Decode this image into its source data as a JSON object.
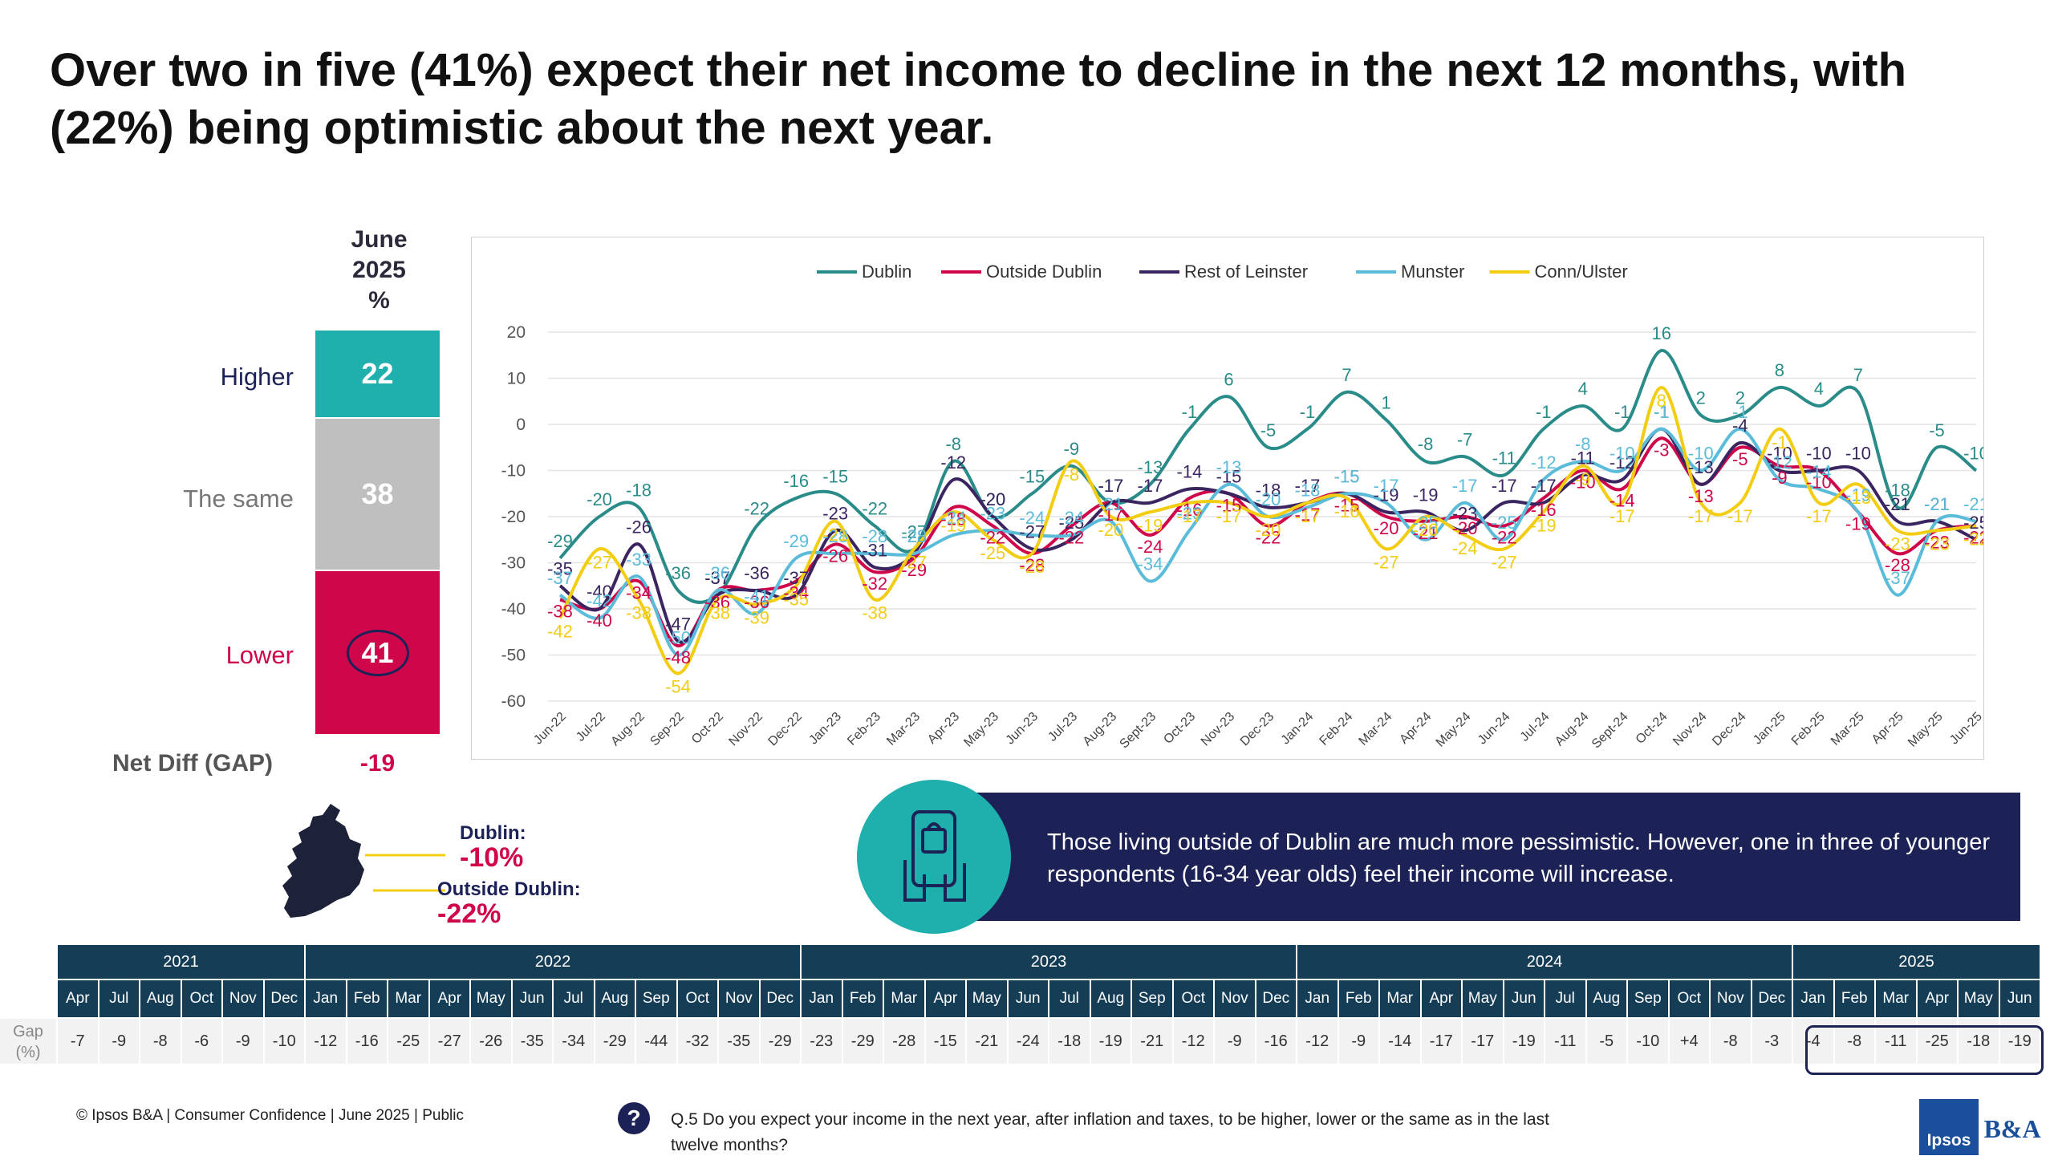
{
  "title": "Over two in five (41%) expect their net income to decline in the next 12 months, with (22%) being optimistic about the next year.",
  "stack": {
    "header_line1": "June",
    "header_line2": "2025",
    "header_line3": "%",
    "higher_label": "Higher",
    "higher_value": "22",
    "same_label": "The same",
    "same_value": "38",
    "lower_label": "Lower",
    "lower_value": "41",
    "gap_label": "Net Diff (GAP)",
    "gap_value": "-19",
    "colors": {
      "higher": "#1fafad",
      "same": "#bfbfbf",
      "lower": "#d0064b"
    }
  },
  "map_notes": {
    "dublin_label": "Dublin:",
    "dublin_value": "-10%",
    "outside_label": "Outside Dublin:",
    "outside_value": "-22%"
  },
  "callout": {
    "text": "Those living outside of Dublin are much more pessimistic. However, one in three of younger respondents (16-34 year olds) feel their income will increase.",
    "icon": "phone-shopping-bag-icon"
  },
  "chart_data": {
    "type": "line",
    "x": [
      "Jun-22",
      "Jul-22",
      "Aug-22",
      "Sep-22",
      "Oct-22",
      "Nov-22",
      "Dec-22",
      "Jan-23",
      "Feb-23",
      "Mar-23",
      "Apr-23",
      "May-23",
      "Jun-23",
      "Jul-23",
      "Aug-23",
      "Sept-23",
      "Oct-23",
      "Nov-23",
      "Dec-23",
      "Jan-24",
      "Feb-24",
      "Mar-24",
      "Apr-24",
      "May-24",
      "Jun-24",
      "Jul-24",
      "Aug-24",
      "Sept-24",
      "Oct-24",
      "Nov-24",
      "Dec-24",
      "Jan-25",
      "Feb-25",
      "Mar-25",
      "Apr-25",
      "May-25",
      "Jun-25"
    ],
    "ylim": [
      -60,
      20
    ],
    "yticks": [
      20,
      10,
      0,
      -10,
      -20,
      -30,
      -40,
      -50,
      -60
    ],
    "grid": true,
    "legend": "top",
    "series": [
      {
        "name": "Dublin",
        "color": "#2a8c89",
        "values": [
          -29,
          -20,
          -18,
          -36,
          -37,
          -22,
          -16,
          -15,
          -22,
          -27,
          -8,
          -20,
          -15,
          -9,
          -17,
          -13,
          -1,
          6,
          -5,
          -1,
          7,
          1,
          -8,
          -7,
          -11,
          -1,
          4,
          -1,
          16,
          2,
          2,
          8,
          4,
          7,
          -18,
          -5,
          -10
        ]
      },
      {
        "name": "Outside Dublin",
        "color": "#d0064b",
        "values": [
          -38,
          -40,
          -34,
          -48,
          -36,
          -36,
          -34,
          -26,
          -32,
          -29,
          -18,
          -22,
          -28,
          -22,
          -17,
          -24,
          -16,
          -15,
          -22,
          -17,
          -15,
          -20,
          -21,
          -20,
          -22,
          -16,
          -10,
          -14,
          -3,
          -13,
          -5,
          -9,
          -10,
          -19,
          -28,
          -23,
          -22
        ]
      },
      {
        "name": "Rest of Leinster",
        "color": "#3b2560",
        "values": [
          -35,
          -40,
          -26,
          -47,
          -37,
          -36,
          -37,
          -23,
          -31,
          -28,
          -12,
          -20,
          -27,
          -25,
          -17,
          -17,
          -14,
          -15,
          -18,
          -17,
          -15,
          -19,
          -19,
          -23,
          -17,
          -17,
          -11,
          -12,
          -1,
          -13,
          -4,
          -10,
          -10,
          -10,
          -21,
          -21,
          -25
        ]
      },
      {
        "name": "Munster",
        "color": "#5bbcd9",
        "values": [
          -37,
          -42,
          -33,
          -50,
          -36,
          -41,
          -29,
          -28,
          -28,
          -28,
          -24,
          -23,
          -24,
          -24,
          -21,
          -34,
          -23,
          -13,
          -20,
          -18,
          -15,
          -17,
          -25,
          -17,
          -25,
          -12,
          -8,
          -10,
          -1,
          -10,
          -1,
          -12,
          -14,
          -19,
          -37,
          -21,
          -21
        ]
      },
      {
        "name": "Conn/Ulster",
        "color": "#f2cd14",
        "values": [
          -42,
          -27,
          -38,
          -54,
          -38,
          -39,
          -35,
          -21,
          -38,
          -27,
          -19,
          -25,
          -28,
          -8,
          -20,
          -19,
          -17,
          -17,
          -20,
          -17,
          -16,
          -27,
          -20,
          -24,
          -27,
          -19,
          -9,
          -17,
          8,
          -17,
          -17,
          -1,
          -17,
          -13,
          -23,
          -23,
          -22
        ]
      }
    ]
  },
  "gap_table": {
    "row_label_line1": "Gap",
    "row_label_line2": "(%)",
    "years": [
      {
        "label": "2021",
        "span": 6
      },
      {
        "label": "2022",
        "span": 12
      },
      {
        "label": "2023",
        "span": 12
      },
      {
        "label": "2024",
        "span": 12
      },
      {
        "label": "2025",
        "span": 6
      }
    ],
    "months": [
      "Apr",
      "Jul",
      "Aug",
      "Oct",
      "Nov",
      "Dec",
      "Jan",
      "Feb",
      "Mar",
      "Apr",
      "May",
      "Jun",
      "Jul",
      "Aug",
      "Sep",
      "Oct",
      "Nov",
      "Dec",
      "Jan",
      "Feb",
      "Mar",
      "Apr",
      "May",
      "Jun",
      "Jul",
      "Aug",
      "Sep",
      "Oct",
      "Nov",
      "Dec",
      "Jan",
      "Feb",
      "Mar",
      "Apr",
      "May",
      "Jun",
      "Jul",
      "Aug",
      "Sep",
      "Oct",
      "Nov",
      "Dec",
      "Jan",
      "Feb",
      "Mar",
      "Apr",
      "May",
      "Jun"
    ],
    "values": [
      "-7",
      "-9",
      "-8",
      "-6",
      "-9",
      "-10",
      "-12",
      "-16",
      "-25",
      "-27",
      "-26",
      "-35",
      "-34",
      "-29",
      "-44",
      "-32",
      "-35",
      "-29",
      "-23",
      "-29",
      "-28",
      "-15",
      "-21",
      "-24",
      "-18",
      "-19",
      "-21",
      "-12",
      "-9",
      "-16",
      "-12",
      "-9",
      "-14",
      "-17",
      "-17",
      "-19",
      "-11",
      "-5",
      "-10",
      "+4",
      "-8",
      "-3",
      "-4",
      "-8",
      "-11",
      "-25",
      "-18",
      "-19"
    ]
  },
  "footer": "© Ipsos B&A | Consumer Confidence | June 2025 |  Public",
  "question": "Q.5  Do you expect your income in the next year, after inflation and taxes, to be higher, lower or the same as in the last twelve months?",
  "logo": {
    "left_text": "Ipsos",
    "right_text": "B&A",
    "color": "#1a4f9c"
  }
}
